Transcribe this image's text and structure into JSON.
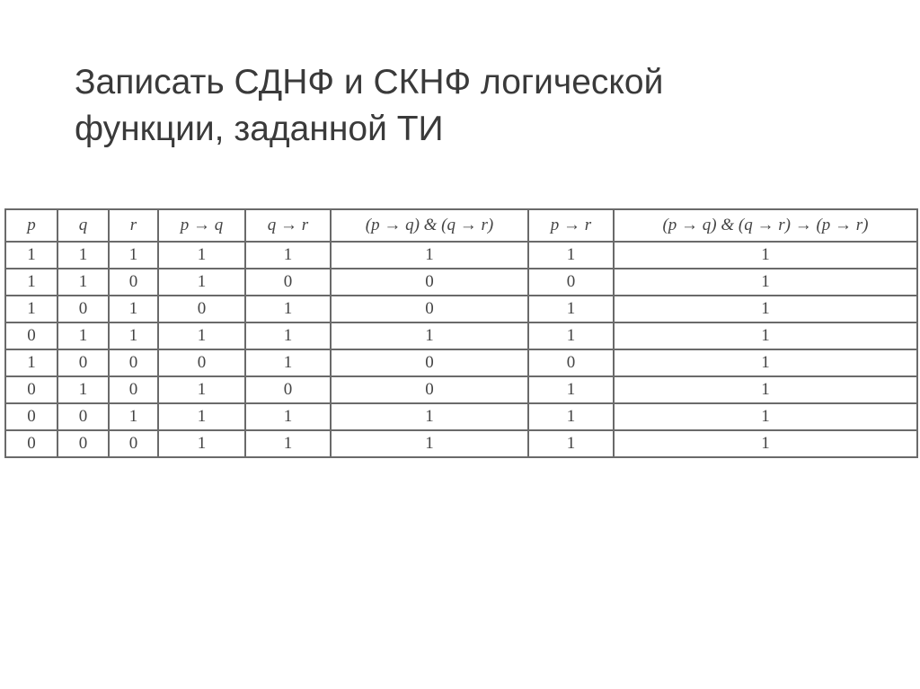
{
  "slide": {
    "title_line1": "Записать СДНФ и СКНФ логической",
    "title_line2": "функции, заданной ТИ"
  },
  "table": {
    "headers": [
      "p",
      "q",
      "r",
      "p → q",
      "q → r",
      "(p → q) & (q → r)",
      "p → r",
      "(p → q) & (q → r) → (p → r)"
    ],
    "rows": [
      [
        "1",
        "1",
        "1",
        "1",
        "1",
        "1",
        "1",
        "1"
      ],
      [
        "1",
        "1",
        "0",
        "1",
        "0",
        "0",
        "0",
        "1"
      ],
      [
        "1",
        "0",
        "1",
        "0",
        "1",
        "0",
        "1",
        "1"
      ],
      [
        "0",
        "1",
        "1",
        "1",
        "1",
        "1",
        "1",
        "1"
      ],
      [
        "1",
        "0",
        "0",
        "0",
        "1",
        "0",
        "0",
        "1"
      ],
      [
        "0",
        "1",
        "0",
        "1",
        "0",
        "0",
        "1",
        "1"
      ],
      [
        "0",
        "0",
        "1",
        "1",
        "1",
        "1",
        "1",
        "1"
      ],
      [
        "0",
        "0",
        "0",
        "1",
        "1",
        "1",
        "1",
        "1"
      ]
    ]
  }
}
